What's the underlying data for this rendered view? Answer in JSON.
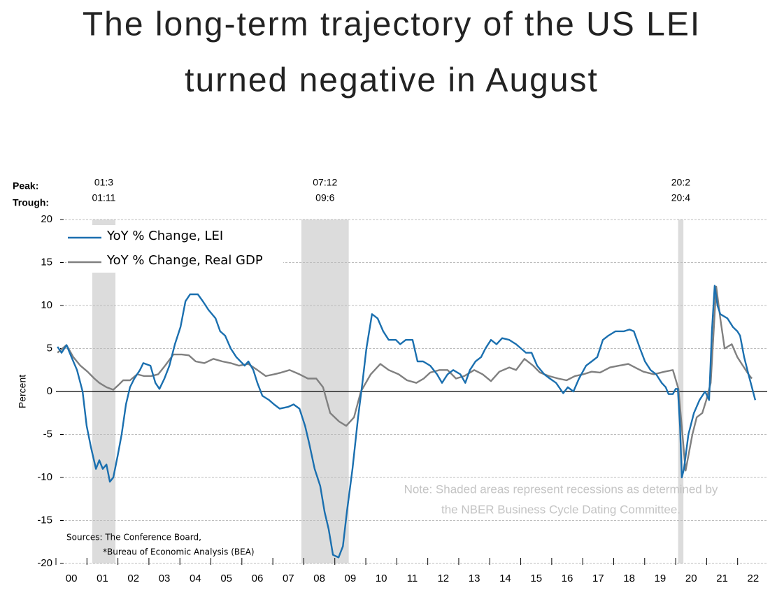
{
  "chart_data": {
    "type": "line",
    "title_lines": [
      "The long-term trajectory of the US LEI",
      "turned negative in August"
    ],
    "ylabel": "Percent",
    "xlim": [
      2000,
      2023
    ],
    "xticks": [
      {
        "value": 2000,
        "label": "00"
      },
      {
        "value": 2001,
        "label": "01"
      },
      {
        "value": 2002,
        "label": "02"
      },
      {
        "value": 2003,
        "label": "03"
      },
      {
        "value": 2004,
        "label": "04"
      },
      {
        "value": 2005,
        "label": "05"
      },
      {
        "value": 2006,
        "label": "06"
      },
      {
        "value": 2007,
        "label": "07"
      },
      {
        "value": 2008,
        "label": "08"
      },
      {
        "value": 2009,
        "label": "09"
      },
      {
        "value": 2010,
        "label": "10"
      },
      {
        "value": 2011,
        "label": "11"
      },
      {
        "value": 2012,
        "label": "12"
      },
      {
        "value": 2013,
        "label": "13"
      },
      {
        "value": 2014,
        "label": "14"
      },
      {
        "value": 2015,
        "label": "15"
      },
      {
        "value": 2016,
        "label": "16"
      },
      {
        "value": 2017,
        "label": "17"
      },
      {
        "value": 2018,
        "label": "18"
      },
      {
        "value": 2019,
        "label": "19"
      },
      {
        "value": 2020,
        "label": "20"
      },
      {
        "value": 2021,
        "label": "21"
      },
      {
        "value": 2022,
        "label": "22"
      }
    ],
    "ylim": [
      -20,
      20
    ],
    "yticks": [
      20,
      15,
      10,
      5,
      0,
      -5,
      -10,
      -15,
      -20
    ],
    "grid": true,
    "legend": "upper left",
    "peak_label": "Peak:",
    "trough_label": "Trough:",
    "recession_color": "#dcdcdc",
    "recessions": [
      {
        "peak": "01:3",
        "trough": "01:11",
        "start": 2001.17,
        "end": 2001.92
      },
      {
        "peak": "07:12",
        "trough": "09:6",
        "start": 2007.92,
        "end": 2009.45
      },
      {
        "peak": "20:2",
        "trough": "20:4",
        "start": 2020.08,
        "end": 2020.25
      }
    ],
    "note_lines": [
      "Note: Shaded areas represent recessions as determined by",
      "the NBER Business Cycle Dating Committee."
    ],
    "source_lines": [
      "Sources: The Conference Board,",
      "*Bureau of Economic Analysis (BEA)"
    ],
    "series": [
      {
        "name": "YoY % Change, Real GDP",
        "color": "#808080",
        "x": [
          2000.05,
          2000.34,
          2000.56,
          2000.79,
          2001.02,
          2001.24,
          2001.4,
          2001.63,
          2001.85,
          2002.03,
          2002.17,
          2002.39,
          2002.62,
          2002.84,
          2003.07,
          2003.3,
          2003.52,
          2003.79,
          2004.06,
          2004.29,
          2004.51,
          2004.79,
          2005.08,
          2005.37,
          2005.64,
          2005.91,
          2006.21,
          2006.5,
          2006.77,
          2007.04,
          2007.27,
          2007.54,
          2007.86,
          2008.13,
          2008.4,
          2008.62,
          2008.85,
          2009.14,
          2009.37,
          2009.62,
          2009.84,
          2010.16,
          2010.47,
          2010.74,
          2011.06,
          2011.33,
          2011.63,
          2011.87,
          2012.08,
          2012.38,
          2012.64,
          2012.91,
          2013.18,
          2013.5,
          2013.77,
          2014.04,
          2014.31,
          2014.63,
          2014.85,
          2015.12,
          2015.4,
          2015.62,
          2015.91,
          2016.21,
          2016.48,
          2016.75,
          2017.02,
          2017.29,
          2017.56,
          2017.88,
          2018.17,
          2018.47,
          2018.74,
          2018.96,
          2019.3,
          2019.64,
          2019.91,
          2020.09,
          2020.32,
          2020.54,
          2020.68,
          2020.86,
          2020.99,
          2021.13,
          2021.31,
          2021.44,
          2021.58,
          2021.81,
          2021.99,
          2022.17,
          2022.35,
          2022.46
        ],
        "values": [
          4.5,
          5.4,
          4,
          3,
          2.3,
          1.5,
          1,
          0.5,
          0.2,
          0.8,
          1.3,
          1.3,
          2,
          1.8,
          1.8,
          2,
          3,
          4.3,
          4.3,
          4.2,
          3.5,
          3.3,
          3.8,
          3.5,
          3.3,
          3,
          3.2,
          2.5,
          1.8,
          2,
          2.2,
          2.5,
          2,
          1.5,
          1.5,
          0.5,
          -2.5,
          -3.5,
          -4,
          -3,
          0,
          2,
          3.2,
          2.5,
          2,
          1.3,
          1,
          1.5,
          2.2,
          2.5,
          2.5,
          1.5,
          1.8,
          2.5,
          2,
          1.2,
          2.3,
          2.8,
          2.5,
          3.8,
          3,
          2.2,
          1.8,
          1.5,
          1.3,
          1.8,
          2,
          2.3,
          2.2,
          2.8,
          3,
          3.2,
          2.7,
          2.3,
          2,
          2.3,
          2.5,
          0.3,
          -9.2,
          -5,
          -3,
          -2.5,
          -1,
          1,
          12.2,
          8.5,
          5,
          5.5,
          4,
          3,
          2,
          1.5
        ]
      },
      {
        "name": "YoY % Change, LEI",
        "color": "#1a6faf",
        "x": [
          2000.05,
          2000.18,
          2000.34,
          2000.5,
          2000.68,
          2000.86,
          2000.99,
          2001.13,
          2001.29,
          2001.4,
          2001.51,
          2001.63,
          2001.74,
          2001.85,
          2001.99,
          2002.12,
          2002.26,
          2002.39,
          2002.53,
          2002.71,
          2002.82,
          2003.05,
          2003.21,
          2003.34,
          2003.5,
          2003.66,
          2003.84,
          2004.02,
          2004.18,
          2004.33,
          2004.58,
          2004.74,
          2004.92,
          2005.15,
          2005.3,
          2005.46,
          2005.64,
          2005.82,
          2006.09,
          2006.21,
          2006.37,
          2006.5,
          2006.66,
          2006.88,
          2007.04,
          2007.22,
          2007.49,
          2007.67,
          2007.86,
          2008.04,
          2008.17,
          2008.35,
          2008.53,
          2008.67,
          2008.8,
          2008.94,
          2009.12,
          2009.26,
          2009.39,
          2009.57,
          2009.75,
          2009.89,
          2010.02,
          2010.2,
          2010.38,
          2010.56,
          2010.74,
          2010.97,
          2011.11,
          2011.29,
          2011.51,
          2011.67,
          2011.85,
          2012.08,
          2012.3,
          2012.46,
          2012.64,
          2012.82,
          2013.05,
          2013.21,
          2013.36,
          2013.54,
          2013.72,
          2013.86,
          2014.04,
          2014.22,
          2014.4,
          2014.63,
          2014.85,
          2015.01,
          2015.17,
          2015.35,
          2015.53,
          2015.76,
          2015.94,
          2016.14,
          2016.37,
          2016.52,
          2016.7,
          2016.88,
          2017.11,
          2017.29,
          2017.47,
          2017.65,
          2017.83,
          2018.06,
          2018.33,
          2018.51,
          2018.65,
          2018.85,
          2019.01,
          2019.19,
          2019.37,
          2019.55,
          2019.68,
          2019.77,
          2019.91,
          2020.0,
          2020.07,
          2020.14,
          2020.2,
          2020.27,
          2020.41,
          2020.59,
          2020.77,
          2020.95,
          2021.08,
          2021.17,
          2021.26,
          2021.35,
          2021.44,
          2021.67,
          2021.85,
          2021.99,
          2022.08,
          2022.21,
          2022.35,
          2022.46,
          2022.57
        ],
        "values": [
          5.2,
          4.5,
          5.4,
          4,
          2.5,
          0,
          -4,
          -6.5,
          -9,
          -8,
          -9,
          -8.5,
          -10.5,
          -10,
          -7.5,
          -5,
          -1.5,
          0.5,
          1.5,
          2.5,
          3.3,
          3,
          1,
          0.3,
          1.5,
          3,
          5.5,
          7.5,
          10.5,
          11.3,
          11.3,
          10.5,
          9.5,
          8.5,
          7,
          6.5,
          5,
          4,
          3,
          3.5,
          2.5,
          1,
          -0.5,
          -1,
          -1.5,
          -2,
          -1.8,
          -1.5,
          -2,
          -4,
          -6,
          -9,
          -11,
          -14,
          -16,
          -19,
          -19.3,
          -18,
          -14,
          -9,
          -3,
          1,
          5,
          9,
          8.5,
          7,
          6,
          6,
          5.5,
          6,
          6,
          3.5,
          3.5,
          3,
          2,
          1,
          2,
          2.5,
          2,
          1,
          2.5,
          3.5,
          4,
          5,
          6,
          5.5,
          6.2,
          6,
          5.5,
          5,
          4.5,
          4.5,
          3,
          2,
          1.5,
          1,
          -0.2,
          0.5,
          0,
          1.5,
          3,
          3.5,
          4,
          6,
          6.5,
          7,
          7,
          7.2,
          7,
          5,
          3.5,
          2.5,
          2,
          1,
          0.5,
          -0.3,
          -0.3,
          0.3,
          0.3,
          -4,
          -10,
          -9,
          -5,
          -2.5,
          -1,
          0,
          -1,
          7,
          12.3,
          10,
          9,
          8.5,
          7.5,
          7,
          6.5,
          4,
          2,
          0.5,
          -1
        ]
      }
    ]
  }
}
